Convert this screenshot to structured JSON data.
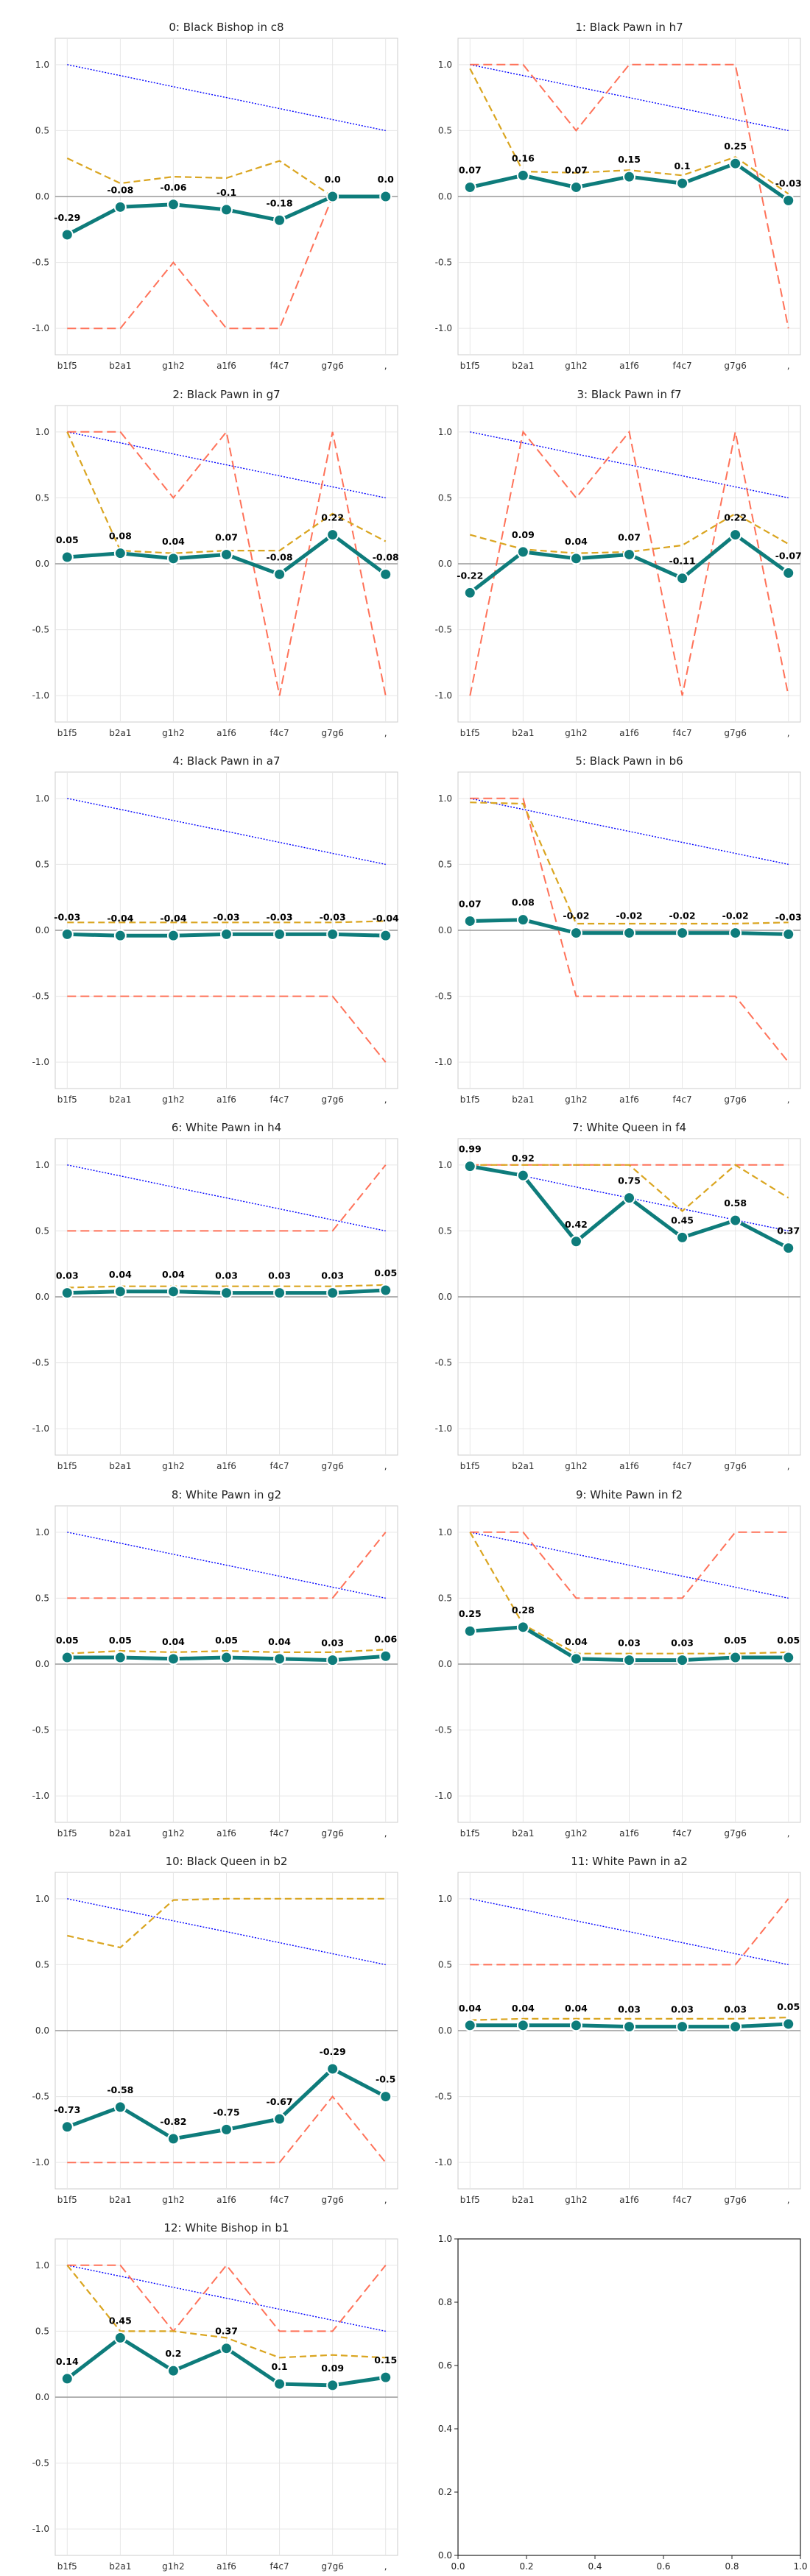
{
  "figure": {
    "x_ticks": [
      "b1f5",
      "b2a1",
      "g1h2",
      "a1f6",
      "f4c7",
      "g7g6",
      ","
    ],
    "y_ticks": [
      "-1.0",
      "-0.5",
      "0.0",
      "0.5",
      "1.0"
    ],
    "empty_axis_ticks": [
      "0.0",
      "0.2",
      "0.4",
      "0.6",
      "0.8",
      "1.0"
    ]
  },
  "colors": {
    "main": "#0e7c7b",
    "gold": "#daa520",
    "red": "#ff6347",
    "blue": "#0000ff",
    "grid": "#e6e6e6",
    "zero": "#999999"
  },
  "chart_data": [
    {
      "type": "line",
      "title": "0: Black Bishop in c8",
      "ylim": [
        -1.2,
        1.2
      ],
      "grid": true,
      "series": [
        {
          "values": [
            -0.29,
            -0.08,
            -0.06,
            -0.1,
            -0.18,
            0.0,
            0.0
          ],
          "labels": [
            "-0.29",
            "-0.08",
            "-0.06",
            "-0.1",
            "-0.18",
            "0.0",
            "0.0"
          ]
        },
        {
          "values": [
            0.29,
            0.1,
            0.15,
            0.14,
            0.27,
            0.0,
            0.0
          ]
        },
        {
          "values": [
            -1,
            -1,
            -0.5,
            -1,
            -1,
            0,
            0
          ]
        },
        {
          "values": [
            1.0,
            0.917,
            0.833,
            0.75,
            0.667,
            0.583,
            0.5
          ]
        }
      ]
    },
    {
      "type": "line",
      "title": "1: Black Pawn in h7",
      "ylim": [
        -1.2,
        1.2
      ],
      "grid": true,
      "series": [
        {
          "values": [
            0.07,
            0.16,
            0.07,
            0.15,
            0.1,
            0.25,
            -0.03
          ],
          "labels": [
            "0.07",
            "0.16",
            "0.07",
            "0.15",
            "0.1",
            "0.25",
            "-0.03"
          ]
        },
        {
          "values": [
            0.97,
            0.19,
            0.18,
            0.2,
            0.16,
            0.3,
            0.02
          ]
        },
        {
          "values": [
            1,
            1,
            0.5,
            1,
            1,
            1,
            -1
          ]
        },
        {
          "values": [
            1.0,
            0.917,
            0.833,
            0.75,
            0.667,
            0.583,
            0.5
          ]
        }
      ]
    },
    {
      "type": "line",
      "title": "2: Black Pawn in g7",
      "ylim": [
        -1.2,
        1.2
      ],
      "grid": true,
      "series": [
        {
          "values": [
            0.05,
            0.08,
            0.04,
            0.07,
            -0.08,
            0.22,
            -0.08
          ],
          "labels": [
            "0.05",
            "0.08",
            "0.04",
            "0.07",
            "-0.08",
            "0.22",
            "-0.08"
          ]
        },
        {
          "values": [
            1.0,
            0.1,
            0.08,
            0.1,
            0.1,
            0.38,
            0.17
          ]
        },
        {
          "values": [
            1,
            1,
            0.5,
            1,
            -1,
            1,
            -1
          ]
        },
        {
          "values": [
            1.0,
            0.917,
            0.833,
            0.75,
            0.667,
            0.583,
            0.5
          ]
        }
      ]
    },
    {
      "type": "line",
      "title": "3: Black Pawn in f7",
      "ylim": [
        -1.2,
        1.2
      ],
      "grid": true,
      "series": [
        {
          "values": [
            -0.22,
            0.09,
            0.04,
            0.07,
            -0.11,
            0.22,
            -0.07
          ],
          "labels": [
            "-0.22",
            "0.09",
            "0.04",
            "0.07",
            "-0.11",
            "0.22",
            "-0.07"
          ]
        },
        {
          "values": [
            0.22,
            0.11,
            0.08,
            0.09,
            0.14,
            0.38,
            0.15
          ]
        },
        {
          "values": [
            -1,
            1,
            0.5,
            1,
            -1,
            1,
            -1
          ]
        },
        {
          "values": [
            1.0,
            0.917,
            0.833,
            0.75,
            0.667,
            0.583,
            0.5
          ]
        }
      ]
    },
    {
      "type": "line",
      "title": "4: Black Pawn in a7",
      "ylim": [
        -1.2,
        1.2
      ],
      "grid": true,
      "series": [
        {
          "values": [
            -0.03,
            -0.04,
            -0.04,
            -0.03,
            -0.03,
            -0.03,
            -0.04
          ],
          "labels": [
            "-0.03",
            "-0.04",
            "-0.04",
            "-0.03",
            "-0.03",
            "-0.03",
            "-0.04"
          ]
        },
        {
          "values": [
            0.06,
            0.06,
            0.06,
            0.06,
            0.06,
            0.06,
            0.07
          ]
        },
        {
          "values": [
            -0.5,
            -0.5,
            -0.5,
            -0.5,
            -0.5,
            -0.5,
            -1
          ]
        },
        {
          "values": [
            1.0,
            0.917,
            0.833,
            0.75,
            0.667,
            0.583,
            0.5
          ]
        }
      ]
    },
    {
      "type": "line",
      "title": "5: Black Pawn in b6",
      "ylim": [
        -1.2,
        1.2
      ],
      "grid": true,
      "series": [
        {
          "values": [
            0.07,
            0.08,
            -0.02,
            -0.02,
            -0.02,
            -0.02,
            -0.03
          ],
          "labels": [
            "0.07",
            "0.08",
            "-0.02",
            "-0.02",
            "-0.02",
            "-0.02",
            "-0.03"
          ]
        },
        {
          "values": [
            0.97,
            0.96,
            0.05,
            0.05,
            0.05,
            0.05,
            0.06
          ]
        },
        {
          "values": [
            1,
            1,
            -0.5,
            -0.5,
            -0.5,
            -0.5,
            -1
          ]
        },
        {
          "values": [
            1.0,
            0.917,
            0.833,
            0.75,
            0.667,
            0.583,
            0.5
          ]
        }
      ]
    },
    {
      "type": "line",
      "title": "6: White Pawn in h4",
      "ylim": [
        -1.2,
        1.2
      ],
      "grid": true,
      "series": [
        {
          "values": [
            0.03,
            0.04,
            0.04,
            0.03,
            0.03,
            0.03,
            0.05
          ],
          "labels": [
            "0.03",
            "0.04",
            "0.04",
            "0.03",
            "0.03",
            "0.03",
            "0.05"
          ]
        },
        {
          "values": [
            0.07,
            0.08,
            0.08,
            0.08,
            0.08,
            0.08,
            0.09
          ]
        },
        {
          "values": [
            0.5,
            0.5,
            0.5,
            0.5,
            0.5,
            0.5,
            1
          ]
        },
        {
          "values": [
            1.0,
            0.917,
            0.833,
            0.75,
            0.667,
            0.583,
            0.5
          ]
        }
      ]
    },
    {
      "type": "line",
      "title": "7: White Queen in f4",
      "ylim": [
        -1.2,
        1.2
      ],
      "grid": true,
      "series": [
        {
          "values": [
            0.99,
            0.92,
            0.42,
            0.75,
            0.45,
            0.58,
            0.37
          ],
          "labels": [
            "0.99",
            "0.92",
            "0.42",
            "0.75",
            "0.45",
            "0.58",
            "0.37"
          ]
        },
        {
          "values": [
            1.0,
            1.0,
            1.0,
            1.0,
            0.65,
            1.0,
            0.75
          ]
        },
        {
          "values": [
            1,
            1,
            1,
            1,
            1,
            1,
            1
          ]
        },
        {
          "values": [
            1.0,
            0.917,
            0.833,
            0.75,
            0.667,
            0.583,
            0.5
          ]
        }
      ]
    },
    {
      "type": "line",
      "title": "8: White Pawn in g2",
      "ylim": [
        -1.2,
        1.2
      ],
      "grid": true,
      "series": [
        {
          "values": [
            0.05,
            0.05,
            0.04,
            0.05,
            0.04,
            0.03,
            0.06
          ],
          "labels": [
            "0.05",
            "0.05",
            "0.04",
            "0.05",
            "0.04",
            "0.03",
            "0.06"
          ]
        },
        {
          "values": [
            0.08,
            0.1,
            0.09,
            0.1,
            0.09,
            0.09,
            0.11
          ]
        },
        {
          "values": [
            0.5,
            0.5,
            0.5,
            0.5,
            0.5,
            0.5,
            1
          ]
        },
        {
          "values": [
            1.0,
            0.917,
            0.833,
            0.75,
            0.667,
            0.583,
            0.5
          ]
        }
      ]
    },
    {
      "type": "line",
      "title": "9: White Pawn in f2",
      "ylim": [
        -1.2,
        1.2
      ],
      "grid": true,
      "series": [
        {
          "values": [
            0.25,
            0.28,
            0.04,
            0.03,
            0.03,
            0.05,
            0.05
          ],
          "labels": [
            "0.25",
            "0.28",
            "0.04",
            "0.03",
            "0.03",
            "0.05",
            "0.05"
          ]
        },
        {
          "values": [
            1.0,
            0.3,
            0.08,
            0.08,
            0.08,
            0.08,
            0.09
          ]
        },
        {
          "values": [
            1,
            1,
            0.5,
            0.5,
            0.5,
            1,
            1
          ]
        },
        {
          "values": [
            1.0,
            0.917,
            0.833,
            0.75,
            0.667,
            0.583,
            0.5
          ]
        }
      ]
    },
    {
      "type": "line",
      "title": "10: Black Queen in b2",
      "ylim": [
        -1.2,
        1.2
      ],
      "grid": true,
      "series": [
        {
          "values": [
            -0.73,
            -0.58,
            -0.82,
            -0.75,
            -0.67,
            -0.29,
            -0.5
          ],
          "labels": [
            "-0.73",
            "-0.58",
            "-0.82",
            "-0.75",
            "-0.67",
            "-0.29",
            "-0.5"
          ]
        },
        {
          "values": [
            0.72,
            0.63,
            0.99,
            1.0,
            1.0,
            1.0,
            1.0
          ]
        },
        {
          "values": [
            -1,
            -1,
            -1,
            -1,
            -1,
            -0.5,
            -1
          ]
        },
        {
          "values": [
            1.0,
            0.917,
            0.833,
            0.75,
            0.667,
            0.583,
            0.5
          ]
        }
      ]
    },
    {
      "type": "line",
      "title": "11: White Pawn in a2",
      "ylim": [
        -1.2,
        1.2
      ],
      "grid": true,
      "series": [
        {
          "values": [
            0.04,
            0.04,
            0.04,
            0.03,
            0.03,
            0.03,
            0.05
          ],
          "labels": [
            "0.04",
            "0.04",
            "0.04",
            "0.03",
            "0.03",
            "0.03",
            "0.05"
          ]
        },
        {
          "values": [
            0.08,
            0.09,
            0.09,
            0.09,
            0.09,
            0.09,
            0.1
          ]
        },
        {
          "values": [
            0.5,
            0.5,
            0.5,
            0.5,
            0.5,
            0.5,
            1
          ]
        },
        {
          "values": [
            1.0,
            0.917,
            0.833,
            0.75,
            0.667,
            0.583,
            0.5
          ]
        }
      ]
    },
    {
      "type": "line",
      "title": "12: White Bishop in b1",
      "ylim": [
        -1.2,
        1.2
      ],
      "grid": true,
      "series": [
        {
          "values": [
            0.14,
            0.45,
            0.2,
            0.37,
            0.1,
            0.09,
            0.15
          ],
          "labels": [
            "0.14",
            "0.45",
            "0.2",
            "0.37",
            "0.1",
            "0.09",
            "0.15"
          ]
        },
        {
          "values": [
            1.0,
            0.5,
            0.5,
            0.45,
            0.3,
            0.32,
            0.3
          ]
        },
        {
          "values": [
            1,
            1,
            0.5,
            1,
            0.5,
            0.5,
            1
          ]
        },
        {
          "values": [
            1.0,
            0.917,
            0.833,
            0.75,
            0.667,
            0.583,
            0.5
          ]
        }
      ]
    },
    {
      "type": "line",
      "title": "",
      "xlim": [
        0,
        1
      ],
      "ylim": [
        0,
        1
      ],
      "grid": false,
      "series": []
    }
  ]
}
